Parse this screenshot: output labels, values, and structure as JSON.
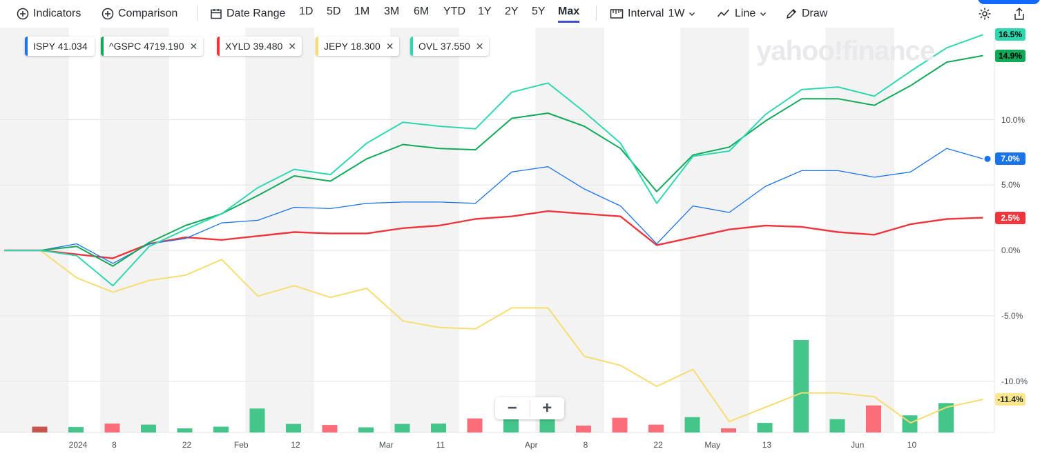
{
  "toolbar": {
    "indicators": "Indicators",
    "comparison": "Comparison",
    "date_range": "Date Range",
    "ranges": [
      "1D",
      "5D",
      "1M",
      "3M",
      "6M",
      "YTD",
      "1Y",
      "2Y",
      "5Y",
      "Max"
    ],
    "active_range": "Max",
    "interval_label": "Interval",
    "interval_value": "1W",
    "chart_type": "Line",
    "draw": "Draw"
  },
  "legend": [
    {
      "symbol": "ISPY",
      "value": "41.034",
      "color": "#1a73e8",
      "removable": false
    },
    {
      "symbol": "^GSPC",
      "value": "4719.190",
      "color": "#0fa958",
      "removable": true
    },
    {
      "symbol": "XYLD",
      "value": "39.480",
      "color": "#f0343b",
      "removable": true
    },
    {
      "symbol": "JEPY",
      "value": "18.300",
      "color": "#f7dc6f",
      "removable": true
    },
    {
      "symbol": "OVL",
      "value": "37.550",
      "color": "#2ed7b0",
      "removable": true
    }
  ],
  "watermark": "yahoo!finance",
  "zoom": {
    "minus": "−",
    "plus": "+"
  },
  "chart_data": {
    "type": "line",
    "y_unit": "% change",
    "ylim": [
      -13.8,
      17.5
    ],
    "yticks": [
      {
        "value": 10,
        "label": "10.0%"
      },
      {
        "value": 5,
        "label": "5.0%"
      },
      {
        "value": 0,
        "label": "0.0%"
      },
      {
        "value": -5,
        "label": "-5.0%"
      },
      {
        "value": -10,
        "label": "-10.0%"
      }
    ],
    "x_tick_labels": [
      {
        "i": 2,
        "label": "2024"
      },
      {
        "i": 3,
        "label": "8"
      },
      {
        "i": 5,
        "label": "22"
      },
      {
        "i": 6.5,
        "label": "Feb"
      },
      {
        "i": 8,
        "label": "12"
      },
      {
        "i": 10.5,
        "label": "Mar"
      },
      {
        "i": 12,
        "label": "11"
      },
      {
        "i": 14.5,
        "label": "Apr"
      },
      {
        "i": 16,
        "label": "8"
      },
      {
        "i": 18,
        "label": "22"
      },
      {
        "i": 19.5,
        "label": "May"
      },
      {
        "i": 21,
        "label": "13"
      },
      {
        "i": 23.5,
        "label": "Jun"
      },
      {
        "i": 25,
        "label": "10"
      }
    ],
    "series": [
      {
        "name": "ISPY",
        "color": "#1a73e8",
        "width": 1.3,
        "last_label": "7.0%",
        "show_dot": true,
        "values": [
          0,
          0,
          0.5,
          -1.0,
          0.5,
          0.9,
          2.1,
          2.3,
          3.3,
          3.2,
          3.6,
          3.7,
          3.7,
          3.6,
          6.0,
          6.4,
          4.7,
          3.4,
          0.5,
          3.4,
          2.9,
          4.9,
          6.1,
          6.1,
          5.6,
          6.0,
          7.8,
          7.0
        ]
      },
      {
        "name": "^GSPC",
        "color": "#0fa958",
        "width": 2,
        "last_label": "14.9%",
        "show_dot": false,
        "values": [
          0,
          0,
          0.3,
          -1.2,
          0.6,
          1.9,
          2.8,
          4.2,
          5.7,
          5.3,
          7.0,
          8.1,
          7.8,
          7.7,
          10.1,
          10.5,
          9.5,
          7.8,
          4.5,
          7.3,
          7.9,
          9.9,
          11.6,
          11.6,
          11.1,
          12.6,
          14.4,
          14.9
        ]
      },
      {
        "name": "XYLD",
        "color": "#f0343b",
        "width": 2.4,
        "last_label": "2.5%",
        "show_dot": false,
        "values": [
          0,
          0,
          -0.3,
          -0.6,
          0.5,
          1.0,
          0.8,
          1.1,
          1.4,
          1.3,
          1.3,
          1.7,
          1.9,
          2.4,
          2.6,
          3.0,
          2.8,
          2.6,
          0.4,
          1.0,
          1.6,
          1.9,
          1.8,
          1.4,
          1.2,
          2.0,
          2.4,
          2.5
        ]
      },
      {
        "name": "JEPY",
        "color": "#f7dc6f",
        "width": 2,
        "last_label": "-11.4%",
        "show_dot": false,
        "values": [
          0,
          0,
          -2.1,
          -3.2,
          -2.3,
          -1.9,
          -0.7,
          -3.5,
          -2.7,
          -3.6,
          -2.9,
          -5.4,
          -5.9,
          -6.0,
          -4.4,
          -4.4,
          -8.1,
          -8.8,
          -10.4,
          -9.1,
          -13.1,
          -12.0,
          -10.9,
          -10.9,
          -11.2,
          -13.2,
          -12.0,
          -11.4
        ]
      },
      {
        "name": "OVL",
        "color": "#2ed7b0",
        "width": 2,
        "last_label": "16.5%",
        "show_dot": false,
        "values": [
          0,
          0,
          -0.4,
          -2.7,
          0.3,
          1.6,
          2.8,
          4.8,
          6.2,
          5.8,
          8.2,
          9.8,
          9.5,
          9.3,
          12.1,
          12.8,
          10.6,
          8.2,
          3.6,
          7.2,
          7.6,
          10.4,
          12.3,
          12.5,
          11.8,
          13.7,
          15.5,
          16.5
        ]
      }
    ],
    "volume": {
      "values": [
        1.7,
        1.6,
        2.6,
        2.3,
        1.2,
        1.7,
        7.0,
        2.5,
        2.2,
        1.5,
        2.5,
        2.6,
        4.1,
        4.6,
        4.0,
        2.0,
        4.3,
        2.3,
        4.5,
        1.2,
        2.8,
        27,
        3.9,
        7.9,
        5.0,
        8.6
      ],
      "up": [
        false,
        true,
        false,
        true,
        true,
        true,
        true,
        true,
        false,
        true,
        true,
        true,
        false,
        true,
        true,
        false,
        false,
        false,
        true,
        false,
        true,
        true,
        true,
        false,
        true,
        true
      ],
      "first_dark": true
    }
  }
}
